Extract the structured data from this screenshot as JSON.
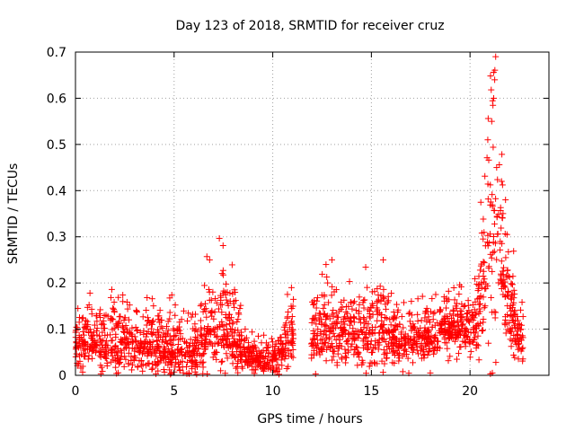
{
  "chart_data": {
    "type": "scatter",
    "title": "Day 123 of 2018, SRMTID for receiver cruz",
    "xlabel": "GPS time / hours",
    "ylabel": "SRMTID / TECUs",
    "xlim": [
      0,
      24
    ],
    "ylim": [
      0,
      0.7
    ],
    "xticks": [
      0,
      5,
      10,
      15,
      20
    ],
    "yticks": [
      0,
      0.1,
      0.2,
      0.3,
      0.4,
      0.5,
      0.6,
      0.7
    ],
    "grid": true,
    "marker": "+",
    "color": "#ff0000",
    "series": [
      {
        "name": "SRMTID",
        "profile": [
          {
            "x": 0.0,
            "mean": 0.06,
            "spread": 0.04
          },
          {
            "x": 0.5,
            "mean": 0.075,
            "spread": 0.045
          },
          {
            "x": 1.0,
            "mean": 0.07,
            "spread": 0.045
          },
          {
            "x": 2.0,
            "mean": 0.065,
            "spread": 0.05
          },
          {
            "x": 3.0,
            "mean": 0.07,
            "spread": 0.05
          },
          {
            "x": 4.0,
            "mean": 0.06,
            "spread": 0.05
          },
          {
            "x": 5.0,
            "mean": 0.055,
            "spread": 0.05
          },
          {
            "x": 6.0,
            "mean": 0.05,
            "spread": 0.05
          },
          {
            "x": 6.8,
            "mean": 0.11,
            "spread": 0.08
          },
          {
            "x": 7.5,
            "mean": 0.1,
            "spread": 0.07
          },
          {
            "x": 8.0,
            "mean": 0.08,
            "spread": 0.06
          },
          {
            "x": 8.8,
            "mean": 0.04,
            "spread": 0.03
          },
          {
            "x": 9.5,
            "mean": 0.03,
            "spread": 0.025
          },
          {
            "x": 10.2,
            "mean": 0.04,
            "spread": 0.03
          },
          {
            "x": 10.8,
            "mean": 0.08,
            "spread": 0.05
          },
          {
            "x": 11.0,
            "mean": 0.09,
            "spread": 0.05
          },
          {
            "x": 12.0,
            "mean": 0.08,
            "spread": 0.05
          },
          {
            "x": 12.7,
            "mean": 0.1,
            "spread": 0.06
          },
          {
            "x": 13.5,
            "mean": 0.09,
            "spread": 0.05
          },
          {
            "x": 14.5,
            "mean": 0.08,
            "spread": 0.05
          },
          {
            "x": 15.5,
            "mean": 0.11,
            "spread": 0.07
          },
          {
            "x": 16.5,
            "mean": 0.07,
            "spread": 0.04
          },
          {
            "x": 17.5,
            "mean": 0.08,
            "spread": 0.04
          },
          {
            "x": 18.5,
            "mean": 0.1,
            "spread": 0.04
          },
          {
            "x": 19.5,
            "mean": 0.1,
            "spread": 0.04
          },
          {
            "x": 20.3,
            "mean": 0.11,
            "spread": 0.05
          },
          {
            "x": 20.8,
            "mean": 0.25,
            "spread": 0.15
          },
          {
            "x": 21.2,
            "mean": 0.33,
            "spread": 0.22
          },
          {
            "x": 21.6,
            "mean": 0.26,
            "spread": 0.14
          },
          {
            "x": 22.0,
            "mean": 0.15,
            "spread": 0.08
          },
          {
            "x": 22.5,
            "mean": 0.08,
            "spread": 0.05
          },
          {
            "x": 22.7,
            "mean": 0.05,
            "spread": 0.04
          }
        ],
        "gaps": [
          [
            11.05,
            11.95
          ]
        ],
        "notable_points": [
          {
            "x": 6.8,
            "y": 0.25
          },
          {
            "x": 12.7,
            "y": 0.24
          },
          {
            "x": 13.0,
            "y": 0.25
          },
          {
            "x": 15.6,
            "y": 0.25
          },
          {
            "x": 20.9,
            "y": 0.51
          },
          {
            "x": 21.1,
            "y": 0.55
          },
          {
            "x": 21.2,
            "y": 0.6
          },
          {
            "x": 21.25,
            "y": 0.64
          },
          {
            "x": 21.3,
            "y": 0.69
          },
          {
            "x": 21.35,
            "y": 0.45
          },
          {
            "x": 21.6,
            "y": 0.42
          },
          {
            "x": 21.8,
            "y": 0.38
          }
        ]
      }
    ]
  }
}
